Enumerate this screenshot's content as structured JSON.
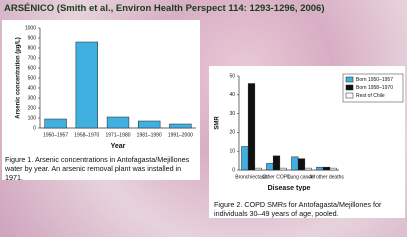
{
  "title": "ARSÉNICO (Smith et al., Environ Health Perspect 114: 1293-1296, 2006)",
  "chart_data": [
    {
      "type": "bar",
      "caption": "Figure 1. Arsenic concentrations in Antofagasta/Mejillones water by year. An arsenic removal plant was installed in 1971.",
      "x_label": "Year",
      "y_label": "Arsenic concentration (µg/L)",
      "categories": [
        "1950–1957",
        "1958–1970",
        "1971–1980",
        "1981–1990",
        "1991–2000"
      ],
      "values": [
        90,
        860,
        110,
        70,
        40
      ],
      "color": "#3fb0e0",
      "ylim": [
        0,
        1000
      ],
      "yticks": [
        0,
        100,
        200,
        300,
        400,
        500,
        600,
        700,
        800,
        900,
        1000
      ]
    },
    {
      "type": "bar",
      "caption": "Figure 2. COPD SMRs for Antofagasta/Mejillones for individuals 30–49 years of age, pooled.",
      "x_label": "Disease type",
      "y_label": "SMR",
      "categories": [
        "Bronchiectasis",
        "Other COPD",
        "Lung cancer",
        "All other deaths"
      ],
      "series": [
        {
          "name": "Born 1950–1957",
          "color": "#3fb0e0",
          "values": [
            12.5,
            3.5,
            7,
            1.5
          ]
        },
        {
          "name": "Born 1958–1970",
          "color": "#111111",
          "values": [
            46,
            7.5,
            6,
            1.5
          ]
        },
        {
          "name": "Rest of Chile",
          "color": "#ffffff",
          "values": [
            1,
            1,
            1,
            1
          ]
        }
      ],
      "ylim": [
        0,
        50
      ],
      "yticks": [
        0,
        10,
        20,
        30,
        40,
        50
      ],
      "legend": "top-right"
    }
  ]
}
